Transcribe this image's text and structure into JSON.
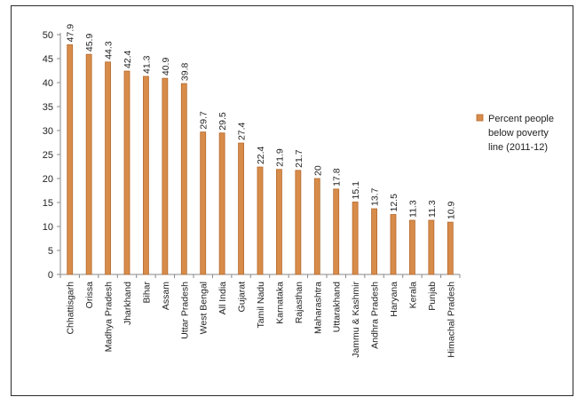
{
  "chart_data": {
    "type": "bar",
    "categories": [
      "Chhattisgarh",
      "Orissa",
      "Madhya Pradesh",
      "Jharkhand",
      "Bihar",
      "Assam",
      "Uttar Pradesh",
      "West Bengal",
      "All India",
      "Gujarat",
      "Tamil Nadu",
      "Karnataka",
      "Rajasthan",
      "Maharashtra",
      "Uttarakhand",
      "Jammu & Kashmir",
      "Andhra Pradesh",
      "Haryana",
      "Kerala",
      "Punjab",
      "Himachal Pradesh"
    ],
    "series": [
      {
        "name": "Percent people below poverty line (2011-12)",
        "values": [
          47.9,
          45.9,
          44.3,
          42.4,
          41.3,
          40.9,
          39.8,
          29.7,
          29.5,
          27.4,
          22.4,
          21.9,
          21.7,
          20,
          17.8,
          15.1,
          13.7,
          12.5,
          11.3,
          11.3,
          10.9
        ],
        "labels": [
          "47.9",
          "45.9",
          "44.3",
          "42.4",
          "41.3",
          "40.9",
          "39.8",
          "29.7",
          "29.5",
          "27.4",
          "22.4",
          "21.9",
          "21.7",
          "20",
          "17.8",
          "15.1",
          "13.7",
          "12.5",
          "11.3",
          "11.3",
          "10.9"
        ],
        "color": "#d88c4a"
      }
    ],
    "legend": {
      "position": "right",
      "lines": [
        "Percent people",
        "below poverty",
        "line (2011-12)"
      ]
    },
    "yticks": [
      "0",
      "5",
      "10",
      "15",
      "20",
      "25",
      "30",
      "35",
      "40",
      "45",
      "50"
    ],
    "ylim": [
      0,
      50
    ],
    "grid": false,
    "title": "",
    "xlabel": "",
    "ylabel": ""
  }
}
